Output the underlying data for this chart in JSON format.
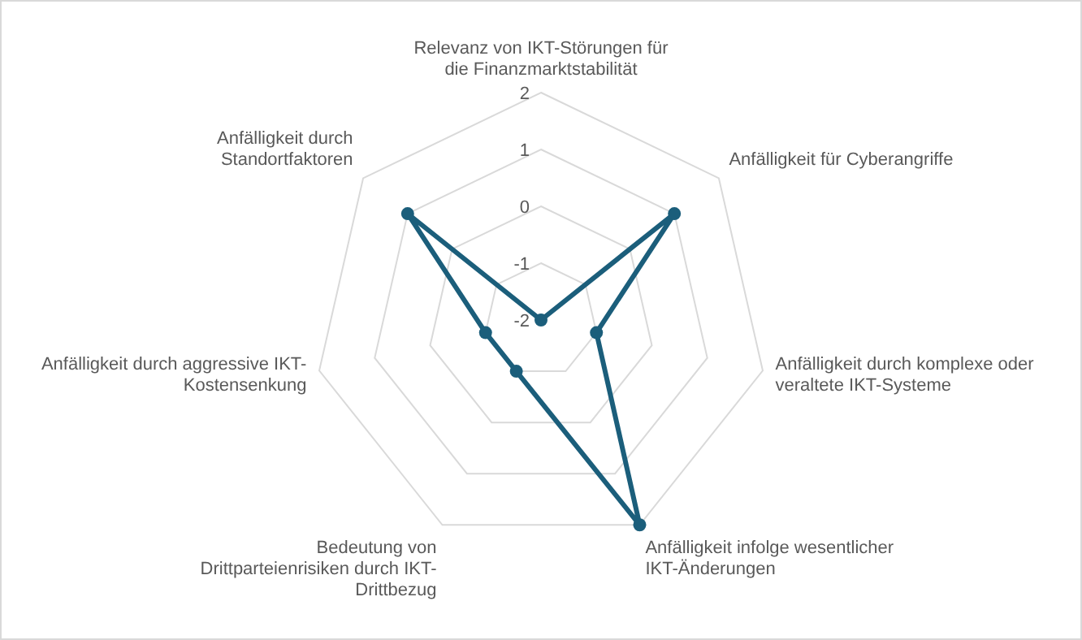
{
  "chart_data": {
    "type": "radar",
    "categories": [
      "Relevanz von IKT-Störungen für\ndie Finanzmarktstabilität",
      "Anfälligkeit für Cyberangriffe",
      "Anfälligkeit durch komplexe oder\nveraltete IKT-Systeme",
      "Anfälligkeit infolge wesentlicher\nIKT-Änderungen",
      "Bedeutung von\nDrittparteienrisiken durch IKT-\nDrittbezug",
      "Anfälligkeit durch aggressive IKT-\nKostensenkung",
      "Anfälligkeit durch\nStandortfaktoren"
    ],
    "series": [
      {
        "color": "#1b5e7b",
        "values": [
          -2,
          1,
          -1,
          2,
          -1,
          -1,
          1
        ]
      }
    ],
    "ylim": [
      -2,
      2
    ],
    "yticks": [
      -2,
      -1,
      0,
      1,
      2
    ],
    "grid": true,
    "marker": "circle"
  }
}
